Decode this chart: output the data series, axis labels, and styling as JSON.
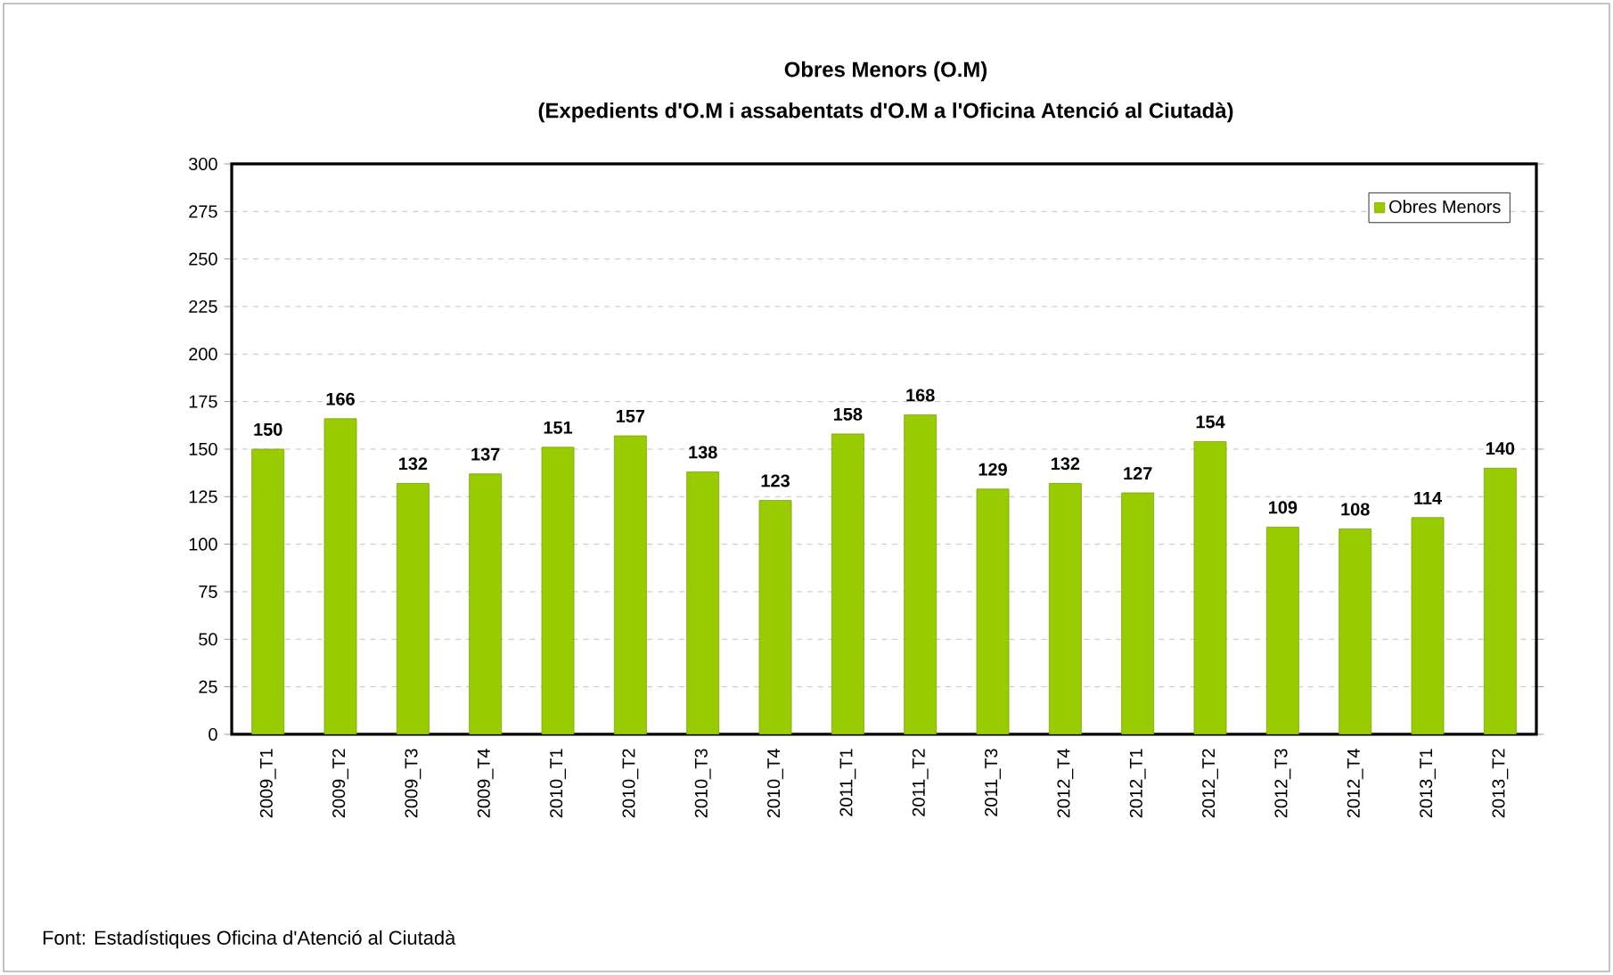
{
  "chart_data": {
    "type": "bar",
    "title": "Obres Menors (O.M)",
    "subtitle": "(Expedients d'O.M i assabentats d'O.M a l'Oficina Atenció al Ciutadà)",
    "categories": [
      "2009_T1",
      "2009_T2",
      "2009_T3",
      "2009_T4",
      "2010_T1",
      "2010_T2",
      "2010_T3",
      "2010_T4",
      "2011_T1",
      "2011_T2",
      "2011_T3",
      "2012_T4",
      "2012_T1",
      "2012_T2",
      "2012_T3",
      "2012_T4",
      "2013_T1",
      "2013_T2"
    ],
    "series": [
      {
        "name": "Obres Menors",
        "color": "#99cc00",
        "values": [
          150,
          166,
          132,
          137,
          151,
          157,
          138,
          123,
          158,
          168,
          129,
          132,
          127,
          154,
          109,
          108,
          114,
          140
        ]
      }
    ],
    "ylim": [
      0,
      300
    ],
    "yticks": [
      0,
      25,
      50,
      75,
      100,
      125,
      150,
      175,
      200,
      225,
      250,
      275,
      300
    ],
    "grid": "y",
    "legend": "top right",
    "data_labels": true,
    "annotations": [
      "Font:  Estadístiques Oficina d'Atenció al Ciutadà"
    ]
  }
}
